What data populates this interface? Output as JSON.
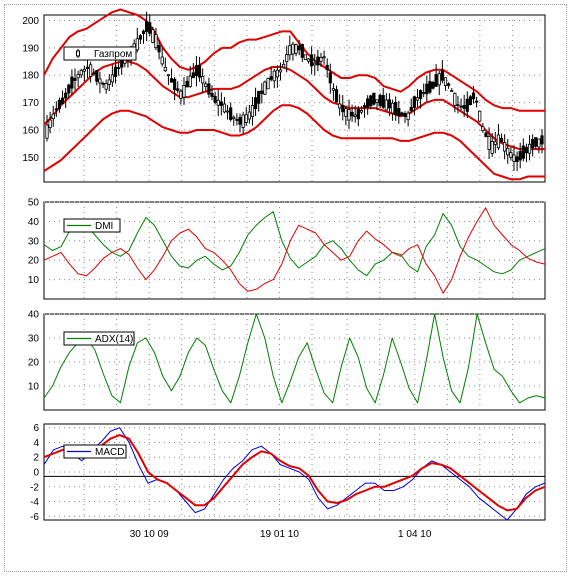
{
  "chart_data": [
    {
      "type": "candlestick",
      "legend": "Газпром",
      "ylim": [
        141,
        202
      ],
      "yticks": [
        150,
        160,
        170,
        180,
        190,
        200
      ],
      "grid": true,
      "legend_position": "top-left",
      "colors": {
        "price": "#000000",
        "bands": "#e00000"
      },
      "series": [
        {
          "name": "Газпром",
          "values": [
            160,
            167,
            171,
            177,
            181,
            183,
            179,
            176,
            180,
            185,
            188,
            193,
            198,
            193,
            183,
            177,
            173,
            178,
            182,
            176,
            171,
            169,
            165,
            163,
            165,
            170,
            176,
            180,
            182,
            190,
            190,
            186,
            184,
            187,
            176,
            168,
            166,
            165,
            169,
            171,
            170,
            169,
            166,
            165,
            171,
            174,
            176,
            180,
            176,
            169,
            168,
            173,
            160,
            154,
            157,
            152,
            149,
            152,
            155,
            156
          ]
        },
        {
          "name": "Upper band",
          "values": [
            180,
            186,
            190,
            194,
            196,
            197,
            199,
            201,
            203,
            204,
            203,
            202,
            200,
            196,
            190,
            186,
            183,
            182,
            183,
            185,
            188,
            190,
            190,
            192,
            193,
            193,
            194,
            195,
            196,
            196,
            192,
            188,
            185,
            183,
            181,
            179,
            179,
            180,
            180,
            179,
            176,
            175,
            174,
            176,
            179,
            181,
            182,
            182,
            180,
            178,
            176,
            174,
            171,
            169,
            168,
            168,
            167,
            167,
            167,
            167
          ]
        },
        {
          "name": "Middle band",
          "values": [
            162,
            165,
            169,
            172,
            175,
            178,
            181,
            183,
            184,
            185,
            185,
            184,
            182,
            179,
            176,
            174,
            172,
            172,
            173,
            174,
            175,
            175,
            175,
            176,
            178,
            180,
            182,
            183,
            183,
            182,
            180,
            178,
            175,
            172,
            170,
            169,
            168,
            168,
            168,
            168,
            167,
            166,
            165,
            166,
            168,
            170,
            171,
            171,
            169,
            167,
            165,
            163,
            160,
            157,
            155,
            154,
            153,
            153,
            153,
            153
          ]
        },
        {
          "name": "Lower band",
          "values": [
            145,
            147,
            149,
            152,
            155,
            158,
            161,
            164,
            166,
            167,
            167,
            166,
            165,
            163,
            161,
            160,
            159,
            159,
            160,
            160,
            160,
            159,
            158,
            158,
            159,
            161,
            164,
            167,
            169,
            169,
            168,
            166,
            163,
            160,
            158,
            157,
            157,
            157,
            157,
            157,
            157,
            157,
            156,
            156,
            157,
            158,
            159,
            159,
            158,
            156,
            153,
            150,
            147,
            144,
            143,
            142,
            142,
            143,
            143,
            143
          ]
        }
      ]
    },
    {
      "type": "line",
      "legend": "DMI",
      "ylim": [
        0,
        50
      ],
      "yticks": [
        10,
        20,
        30,
        40,
        50
      ],
      "grid": true,
      "legend_position": "top-left",
      "series": [
        {
          "name": "DMI",
          "color": "#008000",
          "values": [
            28,
            25,
            27,
            35,
            41,
            38,
            33,
            28,
            24,
            22,
            25,
            34,
            42,
            38,
            30,
            22,
            17,
            16,
            20,
            22,
            18,
            15,
            17,
            24,
            33,
            38,
            42,
            45,
            30,
            21,
            16,
            19,
            22,
            28,
            30,
            26,
            20,
            15,
            12,
            18,
            20,
            24,
            23,
            17,
            14,
            27,
            33,
            44,
            38,
            27,
            22,
            20,
            17,
            14,
            13,
            15,
            20,
            22,
            24,
            26
          ]
        },
        {
          "name": "DMI",
          "color": "#e00000",
          "values": [
            20,
            22,
            24,
            18,
            13,
            12,
            16,
            21,
            24,
            26,
            23,
            16,
            10,
            15,
            22,
            30,
            34,
            36,
            32,
            26,
            24,
            20,
            15,
            8,
            4,
            5,
            8,
            10,
            18,
            30,
            38,
            36,
            34,
            28,
            24,
            20,
            22,
            30,
            35,
            31,
            28,
            24,
            22,
            26,
            28,
            18,
            12,
            3,
            10,
            22,
            32,
            40,
            47,
            38,
            33,
            28,
            25,
            21,
            19,
            18
          ]
        }
      ]
    },
    {
      "type": "line",
      "legend": "ADX(14)",
      "ylim": [
        0,
        40
      ],
      "yticks": [
        10,
        20,
        30,
        40
      ],
      "grid": true,
      "legend_position": "top-left",
      "series": [
        {
          "name": "ADX(14)",
          "color": "#008000",
          "values": [
            5,
            10,
            18,
            24,
            28,
            30,
            25,
            15,
            6,
            3,
            18,
            28,
            30,
            24,
            14,
            8,
            14,
            24,
            30,
            27,
            17,
            8,
            3,
            14,
            28,
            40,
            30,
            14,
            3,
            12,
            22,
            28,
            17,
            7,
            3,
            18,
            30,
            22,
            9,
            3,
            15,
            30,
            20,
            9,
            3,
            20,
            40,
            22,
            8,
            3,
            18,
            40,
            28,
            17,
            14,
            8,
            3,
            5,
            6,
            5
          ]
        }
      ]
    },
    {
      "type": "line",
      "legend": "MACD",
      "ylim": [
        -6.5,
        6.5
      ],
      "yticks": [
        6,
        4,
        2,
        0,
        -2,
        -4,
        -6
      ],
      "grid": true,
      "legend_position": "top-left",
      "series": [
        {
          "name": "MACD",
          "color": "#0000e0",
          "values": [
            1.0,
            3.0,
            3.5,
            2.5,
            1.5,
            3.0,
            4.0,
            5.5,
            6.0,
            4.0,
            1.0,
            -1.5,
            -1.0,
            -1.5,
            -2.5,
            -4.0,
            -5.5,
            -5.0,
            -3.0,
            -1.0,
            0.5,
            1.5,
            3.0,
            3.5,
            2.5,
            1.0,
            0.5,
            0.0,
            -1.0,
            -3.5,
            -5.0,
            -4.5,
            -3.5,
            -2.5,
            -1.5,
            -1.5,
            -2.5,
            -2.5,
            -2.0,
            -1.0,
            0.5,
            1.5,
            1.0,
            0.0,
            -1.0,
            -2.0,
            -3.5,
            -4.5,
            -5.5,
            -6.5,
            -5.0,
            -3.0,
            -2.0,
            -1.5
          ]
        },
        {
          "name": "Signal",
          "color": "#e00000",
          "values": [
            2.0,
            2.5,
            3.0,
            3.0,
            2.8,
            3.0,
            3.5,
            4.5,
            5.0,
            4.5,
            2.5,
            0.0,
            -1.0,
            -1.5,
            -2.5,
            -3.5,
            -4.5,
            -4.5,
            -3.5,
            -2.0,
            -0.5,
            1.0,
            2.0,
            2.8,
            2.5,
            1.5,
            0.8,
            0.5,
            -0.5,
            -2.5,
            -4.0,
            -4.2,
            -3.8,
            -3.0,
            -2.5,
            -2.0,
            -2.0,
            -1.5,
            -1.0,
            -0.5,
            0.5,
            1.2,
            1.0,
            0.5,
            -0.5,
            -1.5,
            -2.5,
            -3.5,
            -4.5,
            -5.2,
            -5.0,
            -3.5,
            -2.5,
            -2.0
          ]
        }
      ]
    }
  ],
  "x_axis": {
    "labels": [
      "30 10 09",
      "19 01 10",
      "1 04 10"
    ],
    "label_fractions": [
      0.21,
      0.47,
      0.74
    ]
  }
}
